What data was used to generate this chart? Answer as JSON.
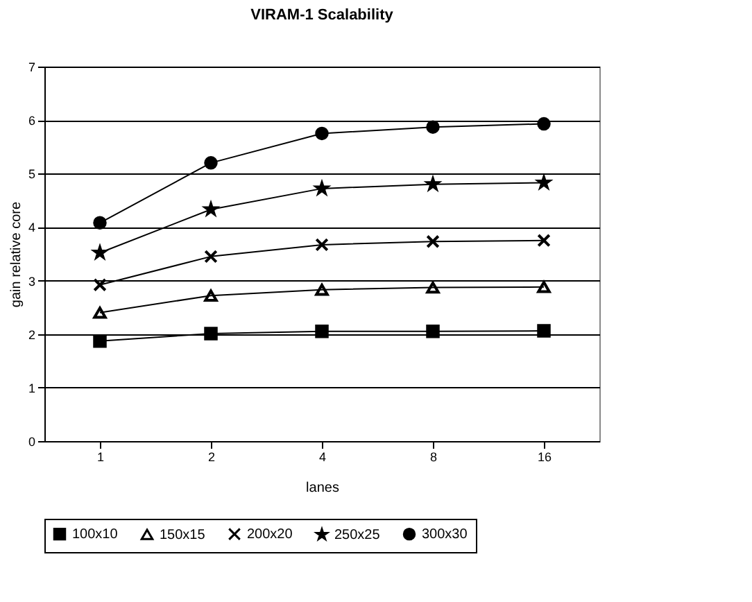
{
  "chart_data": {
    "type": "line",
    "title": "VIRAM-1 Scalability",
    "xlabel": "lanes",
    "ylabel": "gain relative core",
    "categories": [
      "1",
      "2",
      "4",
      "8",
      "16"
    ],
    "series": [
      {
        "name": "100x10",
        "color": "#000000",
        "marker": "square",
        "values": [
          1.87,
          2.01,
          2.05,
          2.05,
          2.06
        ]
      },
      {
        "name": "150x15",
        "color": "#000000",
        "marker": "triangle",
        "values": [
          2.4,
          2.72,
          2.83,
          2.87,
          2.88
        ]
      },
      {
        "name": "200x20",
        "color": "#000000",
        "marker": "cross",
        "values": [
          2.92,
          3.45,
          3.67,
          3.73,
          3.75
        ]
      },
      {
        "name": "250x25",
        "color": "#000000",
        "marker": "star",
        "values": [
          3.52,
          4.33,
          4.72,
          4.8,
          4.83
        ]
      },
      {
        "name": "300x30",
        "color": "#000000",
        "marker": "circle",
        "values": [
          4.08,
          5.2,
          5.75,
          5.87,
          5.93
        ]
      }
    ],
    "ylim": [
      0,
      7
    ],
    "yticks": [
      0,
      1,
      2,
      3,
      4,
      5,
      6,
      7
    ],
    "grid": "y",
    "legend": "bottom",
    "line_style": "solid"
  }
}
